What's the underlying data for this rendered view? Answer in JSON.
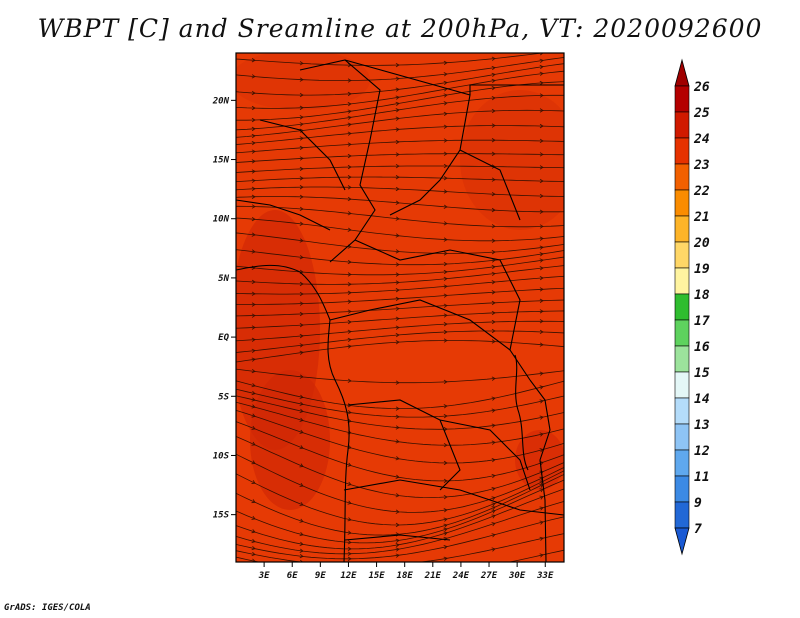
{
  "title": "WBPT [C] and Sreamline at 200hPa, VT: 2020092600",
  "credit": "GrADS: IGES/COLA",
  "map": {
    "lat_range": [
      -19,
      24
    ],
    "lon_range": [
      0,
      35
    ],
    "lat_ticks": [
      "20N",
      "15N",
      "10N",
      "5N",
      "EQ",
      "5S",
      "10S",
      "15S"
    ],
    "lat_values": [
      20,
      15,
      10,
      5,
      0,
      -5,
      -10,
      -15
    ],
    "lon_ticks": [
      "3E",
      "6E",
      "9E",
      "12E",
      "15E",
      "18E",
      "21E",
      "24E",
      "27E",
      "30E",
      "33E"
    ],
    "lon_values": [
      3,
      6,
      9,
      12,
      15,
      18,
      21,
      24,
      27,
      30,
      33
    ]
  },
  "colorbar": {
    "labels": [
      "26",
      "25",
      "24",
      "23",
      "22",
      "21",
      "20",
      "19",
      "18",
      "17",
      "16",
      "15",
      "14",
      "13",
      "12",
      "11",
      "9",
      "7"
    ],
    "colors": [
      "#b40000",
      "#d01a00",
      "#e63200",
      "#f26000",
      "#fa8c00",
      "#fdb428",
      "#ffd767",
      "#fff4a0",
      "#2fbd2f",
      "#5ed25e",
      "#9ce39c",
      "#e4f7f7",
      "#b4dcfa",
      "#8ec4f5",
      "#5fa8ee",
      "#3c8ae4",
      "#2268d6"
    ],
    "top_arrow_color": "#a00000",
    "bottom_arrow_color": "#1a5ad4"
  }
}
